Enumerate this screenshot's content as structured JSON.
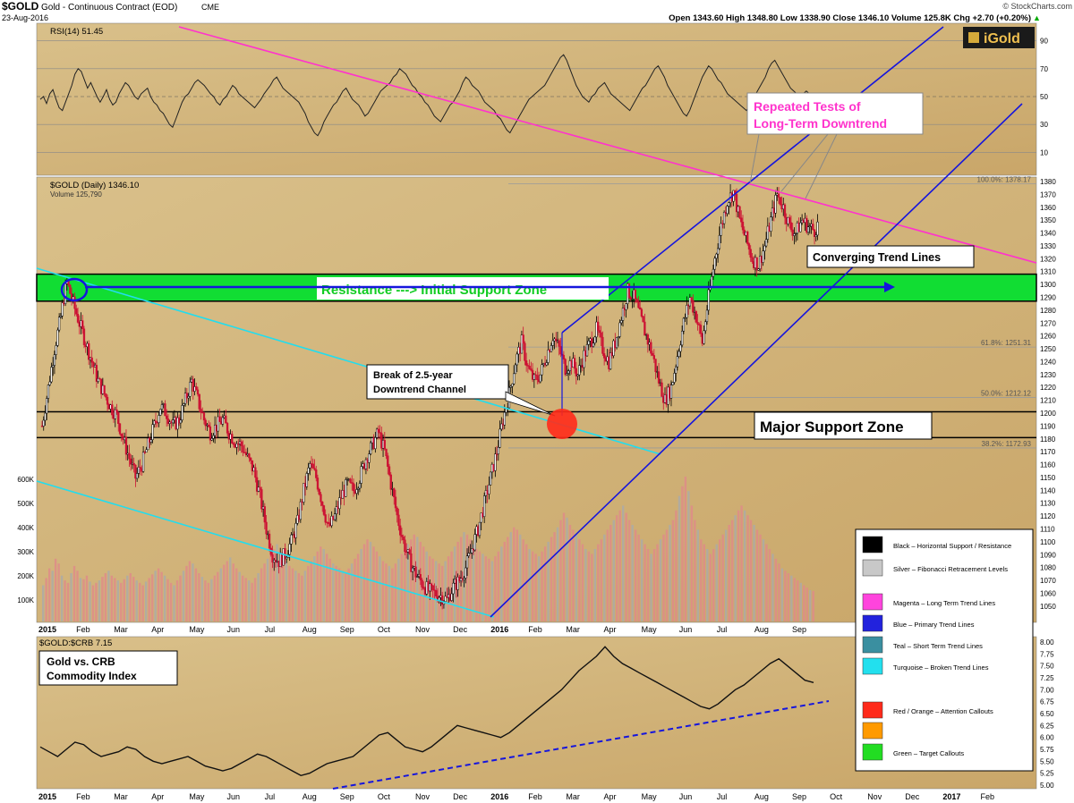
{
  "header": {
    "symbol": "$GOLD",
    "description": "Gold - Continuous Contract (EOD)",
    "exchange": "CME",
    "date": "23-Aug-2016",
    "watermark": "© StockCharts.com",
    "ohlc_text": "Open 1343.60  High 1348.80  Low 1338.90  Close 1346.10  Volume 125.8K  Chg +2.70 (+0.20%)",
    "chg_arrow": "▲"
  },
  "logo": {
    "text": "iGold"
  },
  "rsi_panel": {
    "label": "RSI(14) 51.45",
    "levels": [
      90,
      70,
      50,
      30,
      10
    ],
    "values": [
      48,
      50,
      45,
      52,
      55,
      48,
      42,
      40,
      46,
      52,
      58,
      66,
      70,
      68,
      62,
      56,
      60,
      55,
      50,
      46,
      50,
      55,
      48,
      44,
      46,
      52,
      56,
      60,
      58,
      54,
      50,
      48,
      52,
      54,
      56,
      50,
      46,
      44,
      40,
      38,
      34,
      30,
      28,
      34,
      40,
      46,
      50,
      52,
      56,
      60,
      62,
      60,
      58,
      55,
      52,
      50,
      46,
      44,
      48,
      50,
      54,
      58,
      56,
      52,
      50,
      48,
      46,
      44,
      42,
      45,
      48,
      52,
      55,
      58,
      62,
      64,
      60,
      56,
      54,
      52,
      50,
      48,
      46,
      42,
      38,
      32,
      28,
      24,
      22,
      26,
      32,
      36,
      40,
      44,
      46,
      50,
      54,
      56,
      52,
      48,
      46,
      44,
      40,
      36,
      38,
      42,
      46,
      50,
      54,
      56,
      58,
      60,
      64,
      66,
      70,
      68,
      66,
      62,
      58,
      56,
      52,
      50,
      46,
      44,
      40,
      36,
      34,
      32,
      36,
      40,
      44,
      46,
      50,
      54,
      60,
      64,
      62,
      58,
      56,
      54,
      50,
      46,
      44,
      42,
      40,
      36,
      34,
      30,
      26,
      24,
      28,
      32,
      36,
      40,
      44,
      48,
      50,
      52,
      54,
      56,
      58,
      62,
      66,
      70,
      74,
      78,
      80,
      76,
      70,
      64,
      58,
      54,
      50,
      48,
      46,
      50,
      52,
      56,
      58,
      60,
      56,
      52,
      50,
      48,
      46,
      44,
      42,
      40,
      44,
      48,
      52,
      56,
      58,
      62,
      66,
      70,
      72,
      68,
      64,
      58,
      54,
      50,
      46,
      42,
      38,
      36,
      40,
      46,
      52,
      58,
      64,
      68,
      72,
      70,
      66,
      62,
      60,
      56,
      52,
      50,
      48,
      46,
      44,
      42,
      40,
      44,
      48,
      52,
      56,
      60,
      64,
      70,
      74,
      76,
      72,
      68,
      64,
      60,
      56,
      54,
      52,
      50,
      52,
      54,
      52,
      50,
      52,
      51
    ]
  },
  "price_panel": {
    "label": "$GOLD (Daily) 1346.10",
    "volume_label": "Volume 125,790",
    "y_ticks": [
      1380,
      1370,
      1360,
      1350,
      1340,
      1330,
      1320,
      1310,
      1300,
      1290,
      1280,
      1270,
      1260,
      1250,
      1240,
      1230,
      1220,
      1210,
      1200,
      1190,
      1180,
      1170,
      1160,
      1150,
      1140,
      1130,
      1120,
      1110,
      1100,
      1090,
      1080,
      1070,
      1060,
      1050
    ],
    "volume_ticks": [
      "600K",
      "500K",
      "400K",
      "300K",
      "200K",
      "100K"
    ],
    "fib_levels": [
      {
        "value": 1378.17,
        "label": "100.0%: 1378.17"
      },
      {
        "value": 1251.31,
        "label": "61.8%: 1251.31"
      },
      {
        "value": 1212.12,
        "label": "50.0%: 1212.12"
      },
      {
        "value": 1172.93,
        "label": "38.2%: 1172.93"
      }
    ],
    "resistance_zone": [
      1287,
      1308
    ],
    "support_zone": [
      1181,
      1201
    ],
    "price_path": [
      [
        0,
        1190
      ],
      [
        2,
        1220
      ],
      [
        4,
        1250
      ],
      [
        6,
        1275
      ],
      [
        7,
        1290
      ],
      [
        8,
        1302
      ],
      [
        10,
        1285
      ],
      [
        12,
        1270
      ],
      [
        14,
        1255
      ],
      [
        16,
        1240
      ],
      [
        18,
        1225
      ],
      [
        20,
        1215
      ],
      [
        22,
        1205
      ],
      [
        24,
        1198
      ],
      [
        26,
        1180
      ],
      [
        28,
        1165
      ],
      [
        30,
        1150
      ],
      [
        32,
        1160
      ],
      [
        34,
        1175
      ],
      [
        36,
        1190
      ],
      [
        38,
        1205
      ],
      [
        40,
        1200
      ],
      [
        42,
        1190
      ],
      [
        44,
        1195
      ],
      [
        46,
        1210
      ],
      [
        48,
        1225
      ],
      [
        50,
        1210
      ],
      [
        52,
        1195
      ],
      [
        54,
        1185
      ],
      [
        56,
        1190
      ],
      [
        58,
        1195
      ],
      [
        60,
        1185
      ],
      [
        62,
        1178
      ],
      [
        64,
        1175
      ],
      [
        66,
        1165
      ],
      [
        68,
        1155
      ],
      [
        70,
        1135
      ],
      [
        72,
        1110
      ],
      [
        74,
        1090
      ],
      [
        76,
        1085
      ],
      [
        78,
        1090
      ],
      [
        80,
        1100
      ],
      [
        82,
        1115
      ],
      [
        84,
        1140
      ],
      [
        86,
        1160
      ],
      [
        88,
        1150
      ],
      [
        90,
        1130
      ],
      [
        92,
        1110
      ],
      [
        94,
        1120
      ],
      [
        96,
        1135
      ],
      [
        98,
        1145
      ],
      [
        100,
        1140
      ],
      [
        102,
        1150
      ],
      [
        104,
        1165
      ],
      [
        106,
        1175
      ],
      [
        108,
        1185
      ],
      [
        110,
        1170
      ],
      [
        112,
        1145
      ],
      [
        114,
        1120
      ],
      [
        116,
        1100
      ],
      [
        118,
        1085
      ],
      [
        120,
        1075
      ],
      [
        122,
        1068
      ],
      [
        124,
        1062
      ],
      [
        126,
        1060
      ],
      [
        128,
        1058
      ],
      [
        130,
        1055
      ],
      [
        132,
        1065
      ],
      [
        134,
        1070
      ],
      [
        136,
        1080
      ],
      [
        138,
        1095
      ],
      [
        140,
        1110
      ],
      [
        142,
        1130
      ],
      [
        144,
        1150
      ],
      [
        146,
        1170
      ],
      [
        148,
        1195
      ],
      [
        150,
        1215
      ],
      [
        152,
        1240
      ],
      [
        154,
        1255
      ],
      [
        156,
        1235
      ],
      [
        158,
        1225
      ],
      [
        160,
        1230
      ],
      [
        162,
        1245
      ],
      [
        164,
        1260
      ],
      [
        166,
        1250
      ],
      [
        168,
        1235
      ],
      [
        170,
        1240
      ],
      [
        172,
        1230
      ],
      [
        174,
        1245
      ],
      [
        176,
        1255
      ],
      [
        178,
        1265
      ],
      [
        180,
        1250
      ],
      [
        182,
        1240
      ],
      [
        184,
        1255
      ],
      [
        186,
        1275
      ],
      [
        188,
        1295
      ],
      [
        190,
        1290
      ],
      [
        192,
        1275
      ],
      [
        194,
        1260
      ],
      [
        196,
        1245
      ],
      [
        198,
        1225
      ],
      [
        200,
        1210
      ],
      [
        202,
        1220
      ],
      [
        204,
        1245
      ],
      [
        206,
        1270
      ],
      [
        208,
        1290
      ],
      [
        210,
        1275
      ],
      [
        212,
        1255
      ],
      [
        214,
        1290
      ],
      [
        216,
        1320
      ],
      [
        218,
        1345
      ],
      [
        220,
        1365
      ],
      [
        222,
        1372
      ],
      [
        224,
        1350
      ],
      [
        226,
        1335
      ],
      [
        228,
        1320
      ],
      [
        230,
        1315
      ],
      [
        232,
        1330
      ],
      [
        234,
        1350
      ],
      [
        236,
        1370
      ],
      [
        238,
        1360
      ],
      [
        240,
        1345
      ],
      [
        242,
        1340
      ],
      [
        244,
        1350
      ],
      [
        246,
        1345
      ],
      [
        248,
        1342
      ],
      [
        249,
        1346
      ]
    ],
    "volume_values": [
      150,
      180,
      220,
      210,
      260,
      240,
      190,
      170,
      160,
      200,
      230,
      210,
      180,
      175,
      190,
      165,
      150,
      160,
      170,
      185,
      200,
      210,
      190,
      180,
      170,
      160,
      175,
      190,
      200,
      185,
      170,
      160,
      150,
      165,
      180,
      195,
      210,
      220,
      205,
      190,
      175,
      160,
      150,
      170,
      190,
      210,
      230,
      250,
      240,
      220,
      200,
      185,
      170,
      160,
      175,
      190,
      205,
      220,
      235,
      250,
      265,
      240,
      220,
      205,
      190,
      180,
      170,
      160,
      180,
      200,
      220,
      240,
      260,
      280,
      300,
      320,
      290,
      270,
      250,
      230,
      220,
      210,
      200,
      190,
      210,
      230,
      250,
      270,
      290,
      310,
      300,
      280,
      260,
      240,
      230,
      220,
      210,
      200,
      220,
      240,
      260,
      280,
      300,
      320,
      340,
      330,
      310,
      290,
      270,
      250,
      240,
      230,
      220,
      240,
      260,
      280,
      300,
      320,
      340,
      360,
      350,
      330,
      310,
      290,
      270,
      260,
      250,
      240,
      230,
      250,
      270,
      290,
      310,
      330,
      350,
      370,
      360,
      340,
      320,
      300,
      290,
      280,
      270,
      260,
      250,
      270,
      290,
      310,
      330,
      350,
      370,
      390,
      380,
      360,
      340,
      320,
      300,
      290,
      280,
      270,
      290,
      310,
      330,
      350,
      370,
      390,
      420,
      450,
      430,
      400,
      380,
      360,
      340,
      320,
      300,
      290,
      280,
      300,
      320,
      340,
      360,
      380,
      400,
      420,
      440,
      460,
      480,
      450,
      420,
      400,
      380,
      360,
      340,
      320,
      300,
      280,
      300,
      320,
      340,
      360,
      380,
      400,
      420,
      460,
      520,
      560,
      600,
      540,
      480,
      420,
      380,
      340,
      320,
      300,
      280,
      300,
      320,
      340,
      360,
      380,
      400,
      420,
      440,
      460,
      480,
      460,
      440,
      420,
      400,
      380,
      360,
      340,
      320,
      300,
      280,
      260,
      240,
      220,
      210,
      200,
      190,
      180,
      170,
      160,
      150,
      140,
      130,
      126
    ]
  },
  "x_axis": {
    "labels_top": [
      "2015",
      "Feb",
      "Mar",
      "Apr",
      "May",
      "Jun",
      "Jul",
      "Aug",
      "Sep",
      "Oct",
      "Nov",
      "Dec",
      "2016",
      "Feb",
      "Mar",
      "Apr",
      "May",
      "Jun",
      "Jul",
      "Aug",
      "Sep"
    ],
    "labels_bottom": [
      "2015",
      "Feb",
      "Mar",
      "Apr",
      "May",
      "Jun",
      "Jul",
      "Aug",
      "Sep",
      "Oct",
      "Nov",
      "Dec",
      "2016",
      "Feb",
      "Mar",
      "Apr",
      "May",
      "Jun",
      "Jul",
      "Aug",
      "Sep",
      "Oct",
      "Nov",
      "Dec",
      "2017",
      "Feb"
    ]
  },
  "ratio_panel": {
    "label": "$GOLD:$CRB 7.15",
    "y_ticks": [
      "8.00",
      "7.75",
      "7.50",
      "7.25",
      "7.00",
      "6.75",
      "6.50",
      "6.25",
      "6.00",
      "5.75",
      "5.50",
      "5.25",
      "5.00"
    ],
    "values": [
      5.8,
      5.7,
      5.6,
      5.75,
      5.9,
      5.85,
      5.7,
      5.6,
      5.65,
      5.7,
      5.8,
      5.75,
      5.6,
      5.5,
      5.45,
      5.5,
      5.55,
      5.6,
      5.5,
      5.4,
      5.35,
      5.3,
      5.35,
      5.45,
      5.55,
      5.65,
      5.6,
      5.5,
      5.4,
      5.3,
      5.2,
      5.25,
      5.35,
      5.45,
      5.5,
      5.55,
      5.6,
      5.75,
      5.9,
      6.05,
      6.1,
      5.95,
      5.8,
      5.75,
      5.7,
      5.8,
      5.95,
      6.1,
      6.25,
      6.2,
      6.15,
      6.1,
      6.05,
      6.0,
      6.1,
      6.25,
      6.4,
      6.55,
      6.7,
      6.85,
      7.0,
      7.2,
      7.4,
      7.55,
      7.7,
      7.9,
      7.7,
      7.55,
      7.45,
      7.35,
      7.25,
      7.15,
      7.05,
      6.95,
      6.85,
      6.75,
      6.65,
      6.6,
      6.7,
      6.85,
      7.0,
      7.1,
      7.25,
      7.4,
      7.55,
      7.65,
      7.5,
      7.35,
      7.2,
      7.15
    ]
  },
  "annotations": {
    "resistance_callout": "Resistance ---> Initial Support Zone",
    "break_callout_line1": "Break of 2.5-year",
    "break_callout_line2": "Downtrend Channel",
    "major_support": "Major Support Zone",
    "repeated_line1": "Repeated Tests of",
    "repeated_line2": "Long-Term Downtrend",
    "converging": "Converging Trend Lines",
    "gold_crb_line1": "Gold vs. CRB",
    "gold_crb_line2": "Commodity Index"
  },
  "legend": {
    "items": [
      {
        "color": "#000000",
        "label": "Black – Horizontal Support / Resistance"
      },
      {
        "color": "#c8c8c8",
        "label": "Silver – Fibonacci Retracement Levels"
      },
      {
        "color": "#ff44dd",
        "label": "Magenta – Long Term Trend Lines"
      },
      {
        "color": "#2222dd",
        "label": "Blue – Primary Trend Lines"
      },
      {
        "color": "#3a8fa0",
        "label": "Teal – Short Term Trend Lines"
      },
      {
        "color": "#22e0ee",
        "label": "Turquoise – Broken Trend Lines"
      },
      {
        "color": "#ff2a1a",
        "label": "Red / Orange – Attention Callouts"
      },
      {
        "color": "#ff9a00",
        "label": ""
      },
      {
        "color": "#22dd22",
        "label": "Green – Target Callouts"
      }
    ]
  },
  "colors": {
    "panel_bg": "#d6b77e",
    "magenta": "#ff33cc",
    "blue": "#1515dd",
    "turquoise": "#22ddee",
    "green_zone": "#11dd33",
    "candle_up": "#000000",
    "candle_down": "#cc1133"
  }
}
